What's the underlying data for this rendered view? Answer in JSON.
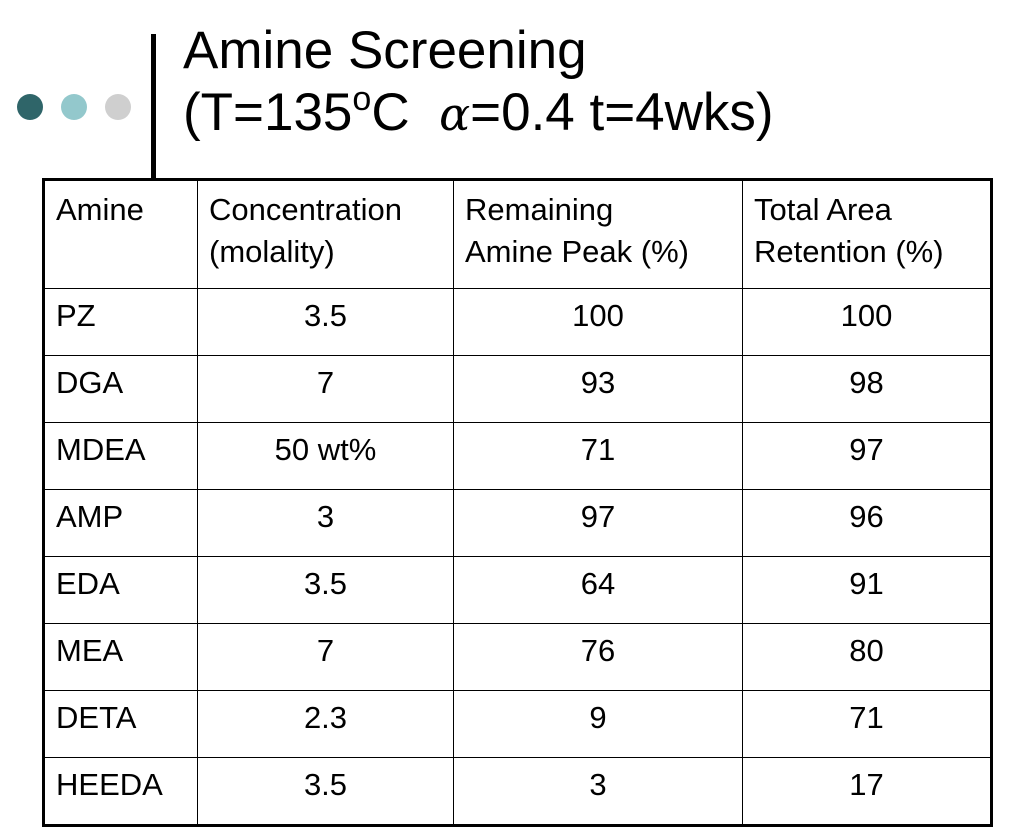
{
  "colors": {
    "dot_1": "#2f6569",
    "dot_2": "#93c8cc",
    "dot_3": "#cfcfcf",
    "rule": "#000000",
    "text": "#000000"
  },
  "title": {
    "line1": "Amine Screening",
    "line2_prefix": "(T=135",
    "line2_superscript": "o",
    "line2_unit": "C",
    "alpha_symbol": "α",
    "line2_suffix": "=0.4  t=4wks)"
  },
  "table": {
    "headers": [
      [
        "Amine"
      ],
      [
        "Concentration",
        "(molality)"
      ],
      [
        "Remaining",
        "Amine Peak (%)"
      ],
      [
        "Total Area",
        "Retention (%)"
      ]
    ],
    "rows": [
      {
        "amine": "PZ",
        "concentration": "3.5",
        "remaining": "100",
        "retention": "100"
      },
      {
        "amine": "DGA",
        "concentration": "7",
        "remaining": "93",
        "retention": "98"
      },
      {
        "amine": "MDEA",
        "concentration": "50 wt%",
        "remaining": "71",
        "retention": "97"
      },
      {
        "amine": "AMP",
        "concentration": "3",
        "remaining": "97",
        "retention": "96"
      },
      {
        "amine": "EDA",
        "concentration": "3.5",
        "remaining": "64",
        "retention": "91"
      },
      {
        "amine": "MEA",
        "concentration": "7",
        "remaining": "76",
        "retention": "80"
      },
      {
        "amine": "DETA",
        "concentration": "2.3",
        "remaining": "9",
        "retention": "71"
      },
      {
        "amine": "HEEDA",
        "concentration": "3.5",
        "remaining": "3",
        "retention": "17"
      }
    ]
  }
}
